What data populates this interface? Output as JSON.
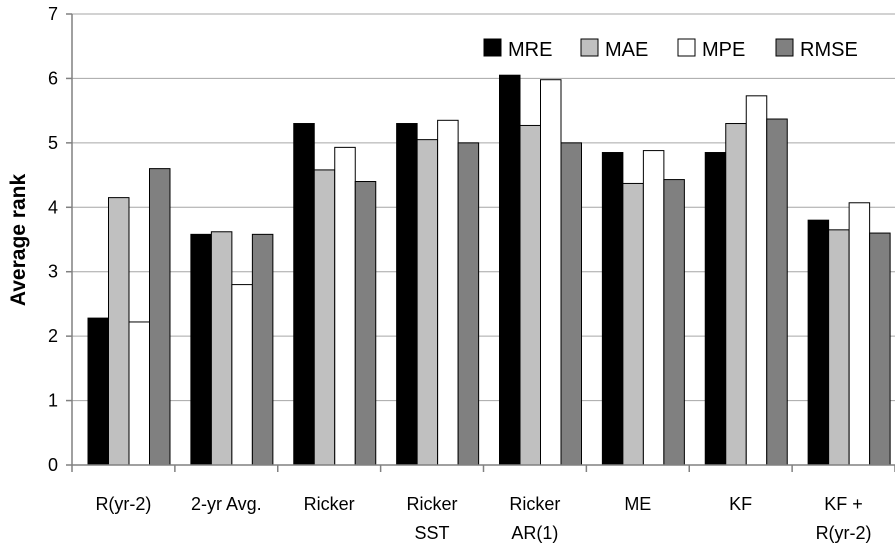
{
  "chart_data": {
    "type": "bar",
    "title": "",
    "xlabel": "",
    "ylabel": "Average rank",
    "ylim": [
      0,
      7
    ],
    "yticks": [
      "0",
      "1",
      "2",
      "3",
      "4",
      "5",
      "6",
      "7"
    ],
    "grid": true,
    "legend_position": "top-right",
    "categories": [
      [
        "R(yr-2)"
      ],
      [
        "2-yr Avg."
      ],
      [
        "Ricker"
      ],
      [
        "Ricker",
        "SST"
      ],
      [
        "Ricker",
        "AR(1)"
      ],
      [
        "ME"
      ],
      [
        "KF"
      ],
      [
        "KF +",
        "R(yr-2)"
      ]
    ],
    "series": [
      {
        "name": "MRE",
        "color": "#000000",
        "values": [
          2.28,
          3.58,
          5.3,
          5.3,
          6.05,
          4.85,
          4.85,
          3.8
        ]
      },
      {
        "name": "MAE",
        "color": "#c0c0c0",
        "values": [
          4.15,
          3.62,
          4.58,
          5.05,
          5.27,
          4.37,
          5.3,
          3.65
        ]
      },
      {
        "name": "MPE",
        "color": "#ffffff",
        "values": [
          2.22,
          2.8,
          4.93,
          5.35,
          5.98,
          4.88,
          5.73,
          4.07
        ]
      },
      {
        "name": "RMSE",
        "color": "#808080",
        "values": [
          4.6,
          3.58,
          4.4,
          5.0,
          5.0,
          4.43,
          5.37,
          3.6
        ]
      }
    ]
  }
}
